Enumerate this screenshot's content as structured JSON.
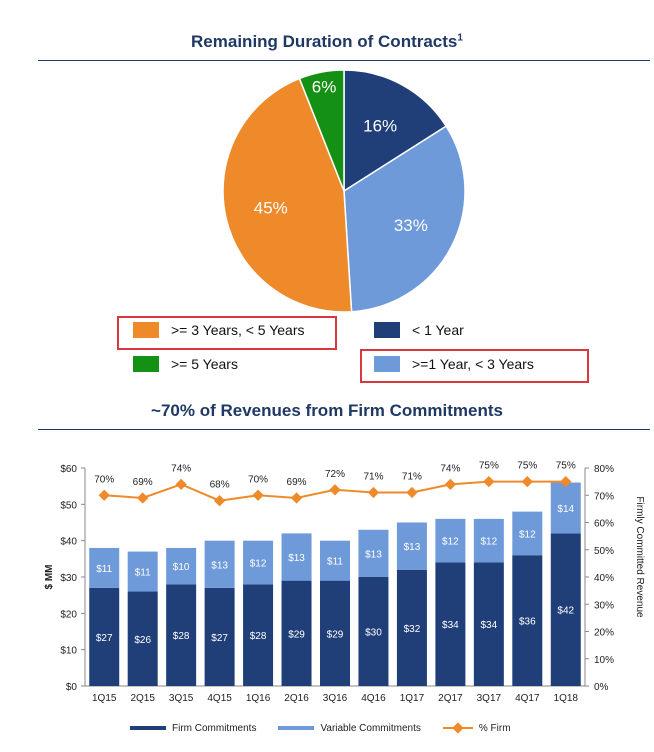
{
  "colors": {
    "orange": "#ee8a2a",
    "green": "#149114",
    "dark_blue": "#203f79",
    "light_blue": "#6f9ad9",
    "title": "#1f3864",
    "highlight": "#d9393e"
  },
  "chart_data": [
    {
      "type": "pie",
      "title": "Remaining Duration of Contracts",
      "title_superscript": "1",
      "slices": [
        {
          "label": "< 1 Year",
          "value": 16,
          "display": "16%",
          "color": "#203f79"
        },
        {
          "label": ">=1 Year, < 3 Years",
          "value": 33,
          "display": "33%",
          "color": "#6f9ad9"
        },
        {
          "label": ">= 3 Years, < 5 Years",
          "value": 45,
          "display": "45%",
          "color": "#ee8a2a"
        },
        {
          "label": ">= 5 Years",
          "value": 6,
          "display": "6%",
          "color": "#149114"
        }
      ]
    },
    {
      "type": "bar",
      "title": "~70% of Revenues from Firm Commitments",
      "categories": [
        "1Q15",
        "2Q15",
        "3Q15",
        "4Q15",
        "1Q16",
        "2Q16",
        "3Q16",
        "4Q16",
        "1Q17",
        "2Q17",
        "3Q17",
        "4Q17",
        "1Q18"
      ],
      "series": [
        {
          "name": "Firm Commitments",
          "values": [
            27,
            26,
            28,
            27,
            28,
            29,
            29,
            30,
            32,
            34,
            34,
            36,
            42
          ],
          "labels": [
            "$27",
            "$26",
            "$28",
            "$27",
            "$28",
            "$29",
            "$29",
            "$30",
            "$32",
            "$34",
            "$34",
            "$36",
            "$42"
          ]
        },
        {
          "name": "Variable Commitments",
          "values": [
            11,
            11,
            10,
            13,
            12,
            13,
            11,
            13,
            13,
            12,
            12,
            12,
            14
          ],
          "labels": [
            "$11",
            "$11",
            "$10",
            "$13",
            "$12",
            "$13",
            "$11",
            "$13",
            "$13",
            "$12",
            "$12",
            "$12",
            "$14"
          ]
        },
        {
          "name": "% Firm",
          "values": [
            70,
            69,
            74,
            68,
            70,
            69,
            72,
            71,
            71,
            74,
            75,
            75,
            75
          ],
          "labels": [
            "70%",
            "69%",
            "74%",
            "68%",
            "70%",
            "69%",
            "72%",
            "71%",
            "71%",
            "74%",
            "75%",
            "75%",
            "75%"
          ]
        }
      ],
      "ylabel": "$ MM",
      "y2label": "Firmly Committed Revenue",
      "ylim": [
        0,
        60
      ],
      "y2lim": [
        0,
        80
      ],
      "yticks": [
        "$0",
        "$10",
        "$20",
        "$30",
        "$40",
        "$50",
        "$60"
      ],
      "y2ticks": [
        "0%",
        "10%",
        "20%",
        "30%",
        "40%",
        "50%",
        "60%",
        "70%",
        "80%"
      ]
    }
  ]
}
